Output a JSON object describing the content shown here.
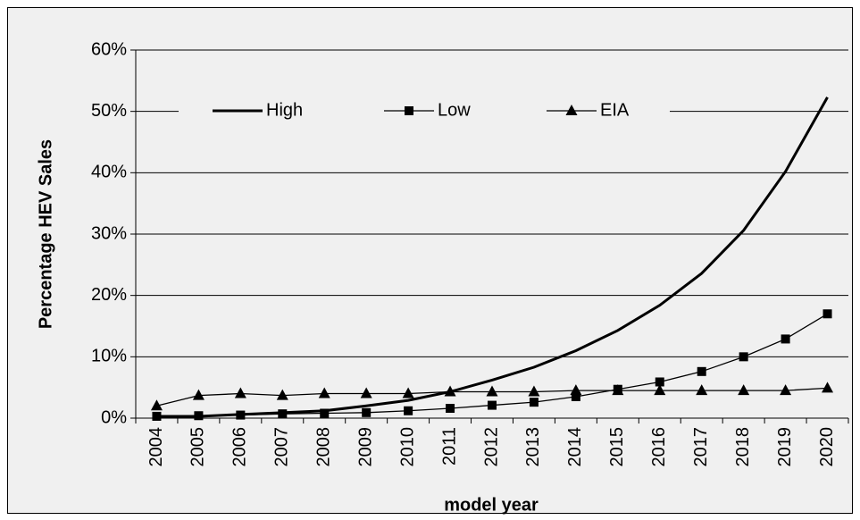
{
  "chart_data": {
    "type": "line",
    "x_label": "model year",
    "y_label": "Percentage HEV Sales",
    "categories": [
      "2004",
      "2005",
      "2006",
      "2007",
      "2008",
      "2009",
      "2010",
      "2011",
      "2012",
      "2013",
      "2014",
      "2015",
      "2016",
      "2017",
      "2018",
      "2019",
      "2020"
    ],
    "series": [
      {
        "name": "High",
        "color": "#000000",
        "marker": "none",
        "values": [
          0.3,
          0.3,
          0.6,
          0.9,
          1.2,
          2.0,
          2.9,
          4.3,
          6.2,
          8.3,
          11.0,
          14.3,
          18.4,
          23.6,
          30.6,
          40.2,
          52.3
        ]
      },
      {
        "name": "Low",
        "color": "#000000",
        "marker": "square",
        "values": [
          0.3,
          0.4,
          0.5,
          0.7,
          0.8,
          0.9,
          1.2,
          1.6,
          2.1,
          2.6,
          3.5,
          4.7,
          5.9,
          7.6,
          10.0,
          12.9,
          17.0
        ]
      },
      {
        "name": "EIA",
        "color": "#000000",
        "marker": "triangle",
        "values": [
          2.0,
          3.7,
          4.0,
          3.7,
          4.0,
          4.0,
          4.0,
          4.3,
          4.3,
          4.3,
          4.5,
          4.5,
          4.5,
          4.5,
          4.5,
          4.5,
          4.9
        ]
      }
    ],
    "ylim": [
      0,
      60
    ],
    "yticks": [
      {
        "value": 0,
        "label": "0%"
      },
      {
        "value": 10,
        "label": "10%"
      },
      {
        "value": 20,
        "label": "20%"
      },
      {
        "value": 30,
        "label": "30%"
      },
      {
        "value": 40,
        "label": "40%"
      },
      {
        "value": 50,
        "label": "50%"
      },
      {
        "value": 60,
        "label": "60%"
      }
    ],
    "grid": true,
    "legend": "top"
  }
}
